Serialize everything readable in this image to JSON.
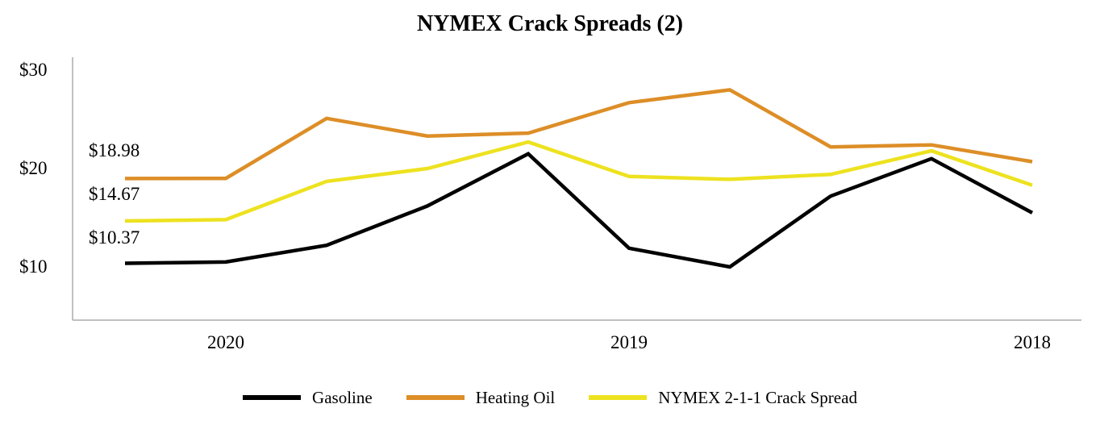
{
  "chart_data": {
    "type": "line",
    "title": "NYMEX Crack Spreads (2)",
    "x_tick_labels": [
      {
        "label": "2020",
        "point_index": 1
      },
      {
        "label": "2019",
        "point_index": 5
      },
      {
        "label": "2018",
        "point_index": 9
      }
    ],
    "x_note": "time runs most-recent (2020) at left to oldest (2018) at right, 10 evenly spaced points (quarterly)",
    "y_ticks": [
      "$30",
      "$20",
      "$10"
    ],
    "ylim": [
      4.5,
      31
    ],
    "grid": "off",
    "legend_position": "bottom-center",
    "axis_color": "#ABABAB",
    "series": [
      {
        "name": "Gasoline",
        "color": "#000000",
        "start_label": "$10.37",
        "values": [
          10.37,
          10.5,
          12.2,
          16.2,
          21.5,
          11.9,
          10.0,
          17.2,
          21.0,
          15.5
        ]
      },
      {
        "name": "Heating Oil",
        "color": "#DD8E27",
        "start_label": "$18.98",
        "values": [
          18.98,
          19.0,
          25.1,
          23.3,
          23.6,
          26.7,
          28.0,
          22.2,
          22.4,
          20.7
        ]
      },
      {
        "name": "NYMEX 2-1-1 Crack Spread",
        "color": "#EDE21F",
        "start_label": "$14.67",
        "values": [
          14.67,
          14.8,
          18.7,
          20.0,
          22.7,
          19.2,
          18.9,
          19.4,
          21.8,
          18.3
        ]
      }
    ]
  }
}
